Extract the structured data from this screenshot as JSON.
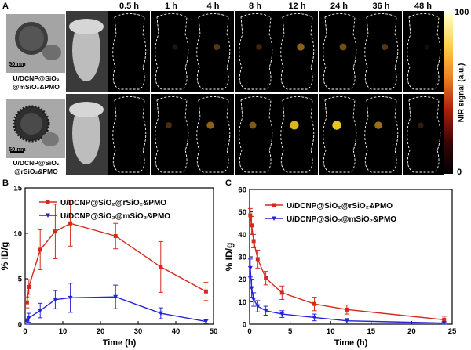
{
  "panelA": {
    "letter": "A",
    "time_labels": [
      "0.5 h",
      "1 h",
      "4 h",
      "8 h",
      "12 h",
      "24 h",
      "36 h",
      "48 h"
    ],
    "row_labels": [
      {
        "line1": "U/DCNP@SiO₂",
        "line2": "@mSiO₂&PMO",
        "scalebar": "50 nm"
      },
      {
        "line1": "U/DCNP@SiO₂",
        "line2": "@rSiO₂&PMO",
        "scalebar": "50 nm"
      }
    ],
    "colorbar": {
      "max": "100",
      "min": "0",
      "label": "NIR signal (a.u.)"
    }
  },
  "panelB": {
    "letter": "B"
  },
  "panelC": {
    "letter": "C"
  },
  "chart_data": [
    {
      "type": "line",
      "xlabel": "Time (h)",
      "ylabel": "% ID/g",
      "xlim": [
        0,
        50
      ],
      "ylim": [
        0,
        15
      ],
      "xticks": [
        0,
        10,
        20,
        30,
        40,
        50
      ],
      "yticks": [
        0,
        5,
        10,
        15
      ],
      "legend_position": "top-left",
      "series": [
        {
          "name": "U/DCNP@SiO₂@rSiO₂&PMO",
          "color": "#d42a1e",
          "marker": "square",
          "x": [
            0.5,
            1,
            4,
            8,
            12,
            24,
            36,
            48
          ],
          "values": [
            2.4,
            4.1,
            8.2,
            10.2,
            11.1,
            9.7,
            6.3,
            3.6
          ],
          "errors": [
            0.6,
            0.8,
            2.2,
            3.0,
            2.5,
            1.4,
            2.8,
            1.0
          ]
        },
        {
          "name": "U/DCNP@SiO₂@mSiO₂&PMO",
          "color": "#2424d6",
          "marker": "triangle-down",
          "x": [
            0.5,
            1,
            4,
            8,
            12,
            24,
            36,
            48
          ],
          "values": [
            0.3,
            0.7,
            1.5,
            2.7,
            2.9,
            3.0,
            1.2,
            0.3
          ],
          "errors": [
            0.3,
            0.5,
            0.8,
            1.0,
            1.6,
            1.3,
            0.6,
            0.2
          ]
        }
      ]
    },
    {
      "type": "line",
      "xlabel": "Time (h)",
      "ylabel": "% ID/g",
      "xlim": [
        0,
        25
      ],
      "ylim": [
        0,
        60
      ],
      "xticks": [
        0,
        5,
        10,
        15,
        20,
        25
      ],
      "yticks": [
        0,
        10,
        20,
        30,
        40,
        50,
        60
      ],
      "legend_position": "top-right",
      "series": [
        {
          "name": "U/DCNP@SiO₂@rSiO₂&PMO",
          "color": "#d42a1e",
          "marker": "square",
          "x": [
            0.083,
            0.25,
            0.5,
            1,
            2,
            4,
            8,
            12,
            24
          ],
          "values": [
            48.5,
            44,
            37,
            29,
            20.5,
            14,
            9,
            6.5,
            2
          ],
          "errors": [
            3,
            4,
            3,
            4,
            3,
            3,
            3,
            2,
            1.5
          ]
        },
        {
          "name": "U/DCNP@SiO₂@mSiO₂&PMO",
          "color": "#2424d6",
          "marker": "triangle-down",
          "x": [
            0.083,
            0.25,
            0.5,
            1,
            2,
            4,
            8,
            12,
            24
          ],
          "values": [
            25,
            16,
            11,
            8,
            6,
            4.5,
            3,
            1.5,
            0.5
          ],
          "errors": [
            4,
            4,
            3,
            2.5,
            2,
            1.5,
            1.5,
            1,
            0.5
          ]
        }
      ]
    }
  ]
}
